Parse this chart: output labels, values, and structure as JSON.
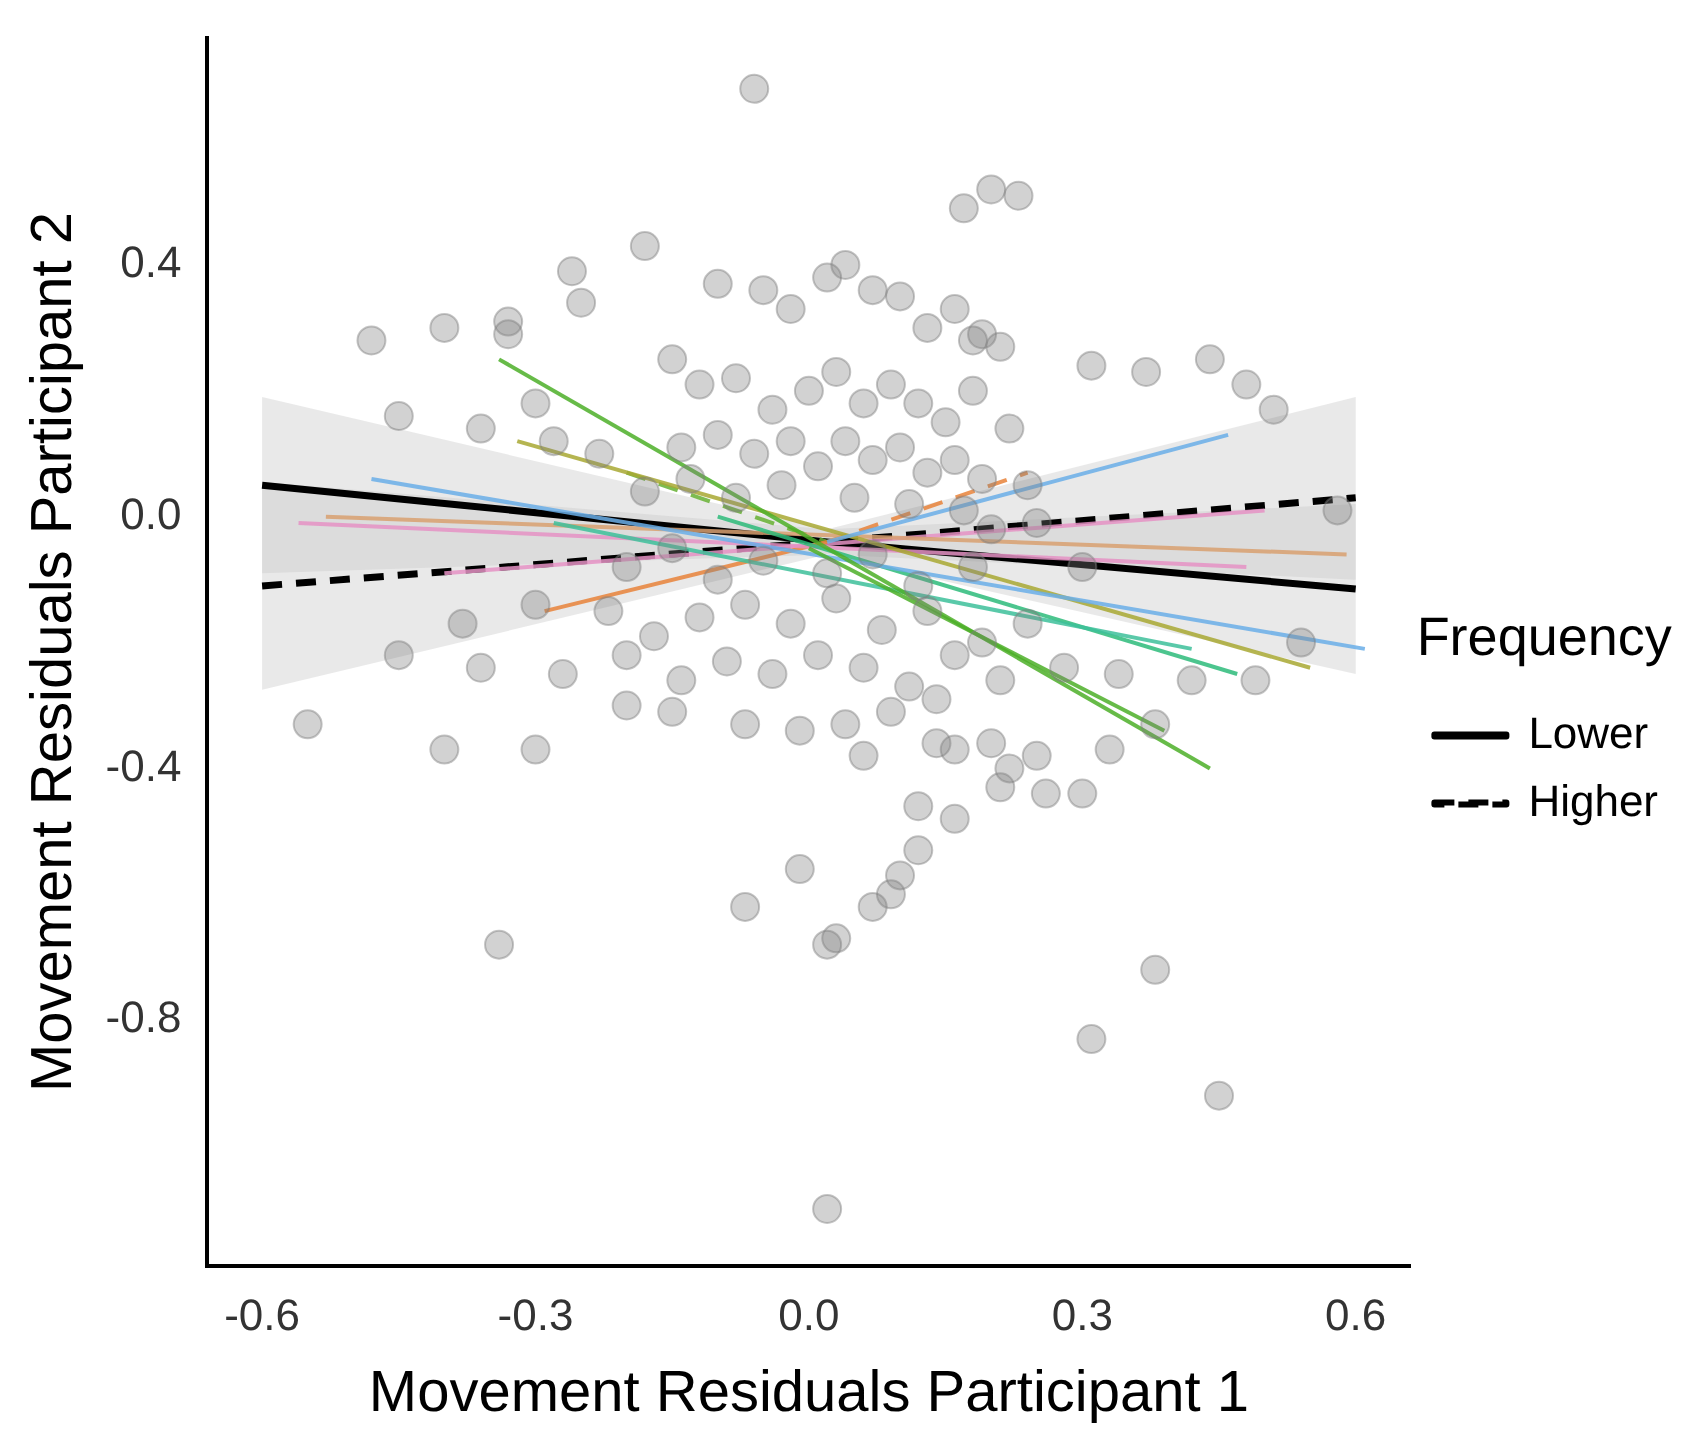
{
  "chart_data": {
    "type": "scatter",
    "xlabel": "Movement Residuals Participant 1",
    "ylabel": "Movement Residuals Participant 2",
    "legend_title": "Frequency",
    "legend": "right",
    "grid": false,
    "xlim": [
      -0.66,
      0.66
    ],
    "ylim": [
      -1.19,
      0.76
    ],
    "xticks": [
      -0.6,
      -0.3,
      {
        "value": 0,
        "label": "0.0"
      },
      0.3,
      0.6
    ],
    "yticks": [
      -0.8,
      -0.4,
      {
        "value": 0,
        "label": "0.0"
      },
      0.4
    ],
    "series": [
      {
        "marker": "circle",
        "color": "#7f7f7f",
        "x": [
          -0.06,
          0.17,
          0.2,
          0.23,
          -0.18,
          -0.26,
          -0.25,
          -0.33,
          -0.4,
          -0.48,
          -0.33,
          0.31,
          0.37,
          0.44,
          0.48,
          0.51,
          0.18,
          -0.45,
          -0.3,
          -0.36,
          -0.28,
          -0.23,
          0.58,
          0.49,
          0.54,
          0.3,
          0.2,
          -0.1,
          -0.05,
          -0.02,
          0.02,
          0.04,
          0.07,
          0.1,
          0.13,
          0.16,
          0.19,
          0.21,
          -0.15,
          -0.12,
          -0.08,
          -0.04,
          0,
          0.03,
          0.06,
          0.09,
          0.12,
          0.15,
          0.18,
          0.22,
          -0.14,
          -0.1,
          -0.06,
          -0.02,
          0.01,
          0.04,
          0.07,
          0.1,
          0.13,
          0.16,
          0.19,
          0.24,
          -0.18,
          -0.13,
          -0.08,
          -0.03,
          0.05,
          0.11,
          0.17,
          0.25,
          -0.2,
          -0.15,
          -0.1,
          -0.05,
          0.02,
          0.07,
          0.12,
          0.18,
          -0.22,
          -0.17,
          -0.12,
          -0.07,
          -0.02,
          0.03,
          0.08,
          0.13,
          0.19,
          0.24,
          -0.3,
          -0.38,
          -0.45,
          -0.36,
          -0.27,
          -0.2,
          -0.14,
          -0.09,
          -0.04,
          0.01,
          0.06,
          0.11,
          0.16,
          0.21,
          0.28,
          0.34,
          0.42,
          -0.55,
          -0.4,
          -0.3,
          -0.2,
          -0.15,
          -0.07,
          -0.01,
          0.04,
          0.09,
          0.14,
          0.06,
          0.14,
          0.16,
          0.2,
          0.25,
          0.33,
          0.38,
          0.3,
          0.16,
          0.21,
          0.26,
          0.22,
          0.12,
          0.12,
          0.1,
          -0.07,
          0.07,
          0.09,
          0.03,
          0.02,
          -0.34,
          0.38,
          0.31,
          0.45,
          0.02,
          -0.01
        ],
        "values": [
          0.68,
          0.49,
          0.52,
          0.51,
          0.43,
          0.39,
          0.34,
          0.31,
          0.3,
          0.28,
          0.29,
          0.24,
          0.23,
          0.25,
          0.21,
          0.17,
          0.28,
          0.16,
          0.18,
          0.14,
          0.12,
          0.1,
          0.01,
          -0.26,
          -0.2,
          -0.08,
          -0.02,
          0.37,
          0.36,
          0.33,
          0.38,
          0.4,
          0.36,
          0.35,
          0.3,
          0.33,
          0.29,
          0.27,
          0.25,
          0.21,
          0.22,
          0.17,
          0.2,
          0.23,
          0.18,
          0.21,
          0.18,
          0.15,
          0.2,
          0.14,
          0.11,
          0.13,
          0.1,
          0.12,
          0.08,
          0.12,
          0.09,
          0.11,
          0.07,
          0.09,
          0.06,
          0.05,
          0.04,
          0.06,
          0.03,
          0.05,
          0.03,
          0.02,
          0.01,
          -0.01,
          -0.08,
          -0.05,
          -0.1,
          -0.07,
          -0.09,
          -0.06,
          -0.11,
          -0.08,
          -0.15,
          -0.19,
          -0.16,
          -0.14,
          -0.17,
          -0.13,
          -0.18,
          -0.15,
          -0.2,
          -0.17,
          -0.14,
          -0.17,
          -0.22,
          -0.24,
          -0.25,
          -0.22,
          -0.26,
          -0.23,
          -0.25,
          -0.22,
          -0.24,
          -0.27,
          -0.22,
          -0.26,
          -0.24,
          -0.25,
          -0.26,
          -0.33,
          -0.37,
          -0.37,
          -0.3,
          -0.31,
          -0.33,
          -0.34,
          -0.33,
          -0.31,
          -0.29,
          -0.38,
          -0.36,
          -0.37,
          -0.36,
          -0.38,
          -0.37,
          -0.33,
          -0.44,
          -0.48,
          -0.43,
          -0.44,
          -0.4,
          -0.46,
          -0.53,
          -0.57,
          -0.62,
          -0.62,
          -0.6,
          -0.67,
          -0.68,
          -0.68,
          -0.72,
          -0.83,
          -0.92,
          -1.1,
          -0.56
        ]
      },
      {
        "type": "line",
        "color": "#4caf28",
        "x": [
          -0.34,
          0.44
        ],
        "values": [
          0.25,
          -0.4
        ]
      },
      {
        "type": "line",
        "color": "#4caf28",
        "x": [
          0,
          0.39
        ],
        "values": [
          -0.05,
          -0.34
        ]
      },
      {
        "type": "line",
        "color": "#6aaee8",
        "x": [
          -0.48,
          0.61
        ],
        "values": [
          0.06,
          -0.21
        ]
      },
      {
        "type": "line",
        "color": "#6aaee8",
        "x": [
          0.02,
          0.46
        ],
        "values": [
          -0.04,
          0.13
        ]
      },
      {
        "type": "line",
        "color": "#a8a832",
        "x": [
          -0.32,
          0.55
        ],
        "values": [
          0.12,
          -0.24
        ]
      },
      {
        "type": "line",
        "color": "#3dbf9a",
        "x": [
          -0.28,
          0.42
        ],
        "values": [
          -0.01,
          -0.21
        ]
      },
      {
        "type": "line",
        "color": "#2dbb7a",
        "x": [
          -0.1,
          0.47
        ],
        "values": [
          0,
          -0.25
        ]
      },
      {
        "type": "line",
        "color": "#e592c4",
        "x": [
          -0.56,
          0.48
        ],
        "values": [
          -0.01,
          -0.08
        ]
      },
      {
        "type": "line",
        "color": "#d8a070",
        "x": [
          -0.53,
          0.59
        ],
        "values": [
          0,
          -0.06
        ]
      },
      {
        "type": "line",
        "color": "#e8823a",
        "x": [
          -0.29,
          0.02
        ],
        "values": [
          -0.15,
          -0.04
        ]
      },
      {
        "type": "line",
        "color": "#e592c4",
        "x": [
          -0.4,
          0.5
        ],
        "values": [
          -0.09,
          0.01
        ]
      },
      {
        "type": "line",
        "color": "#66b032",
        "line_style": "dashed",
        "x": [
          -0.2,
          0.02
        ],
        "values": [
          0.07,
          -0.04
        ]
      },
      {
        "type": "line",
        "color": "#e8823a",
        "line_style": "dashed",
        "x": [
          0.02,
          0.24
        ],
        "values": [
          -0.04,
          0.07
        ]
      },
      {
        "type": "line",
        "name": "Lower",
        "color": "#000000",
        "line_style": "solid",
        "x": [
          -0.6,
          0.02,
          0.6
        ],
        "values": [
          0.05,
          -0.04,
          -0.115
        ],
        "lower": [
          -0.09,
          -0.06,
          -0.25
        ],
        "upper": [
          0.19,
          -0.02,
          0.02
        ]
      },
      {
        "type": "line",
        "name": "Higher",
        "color": "#000000",
        "line_style": "dashed",
        "x": [
          -0.6,
          0.02,
          0.6
        ],
        "values": [
          -0.11,
          -0.04,
          0.03
        ],
        "lower": [
          -0.275,
          -0.06,
          -0.1
        ],
        "upper": [
          0.055,
          -0.02,
          0.19
        ]
      }
    ]
  }
}
